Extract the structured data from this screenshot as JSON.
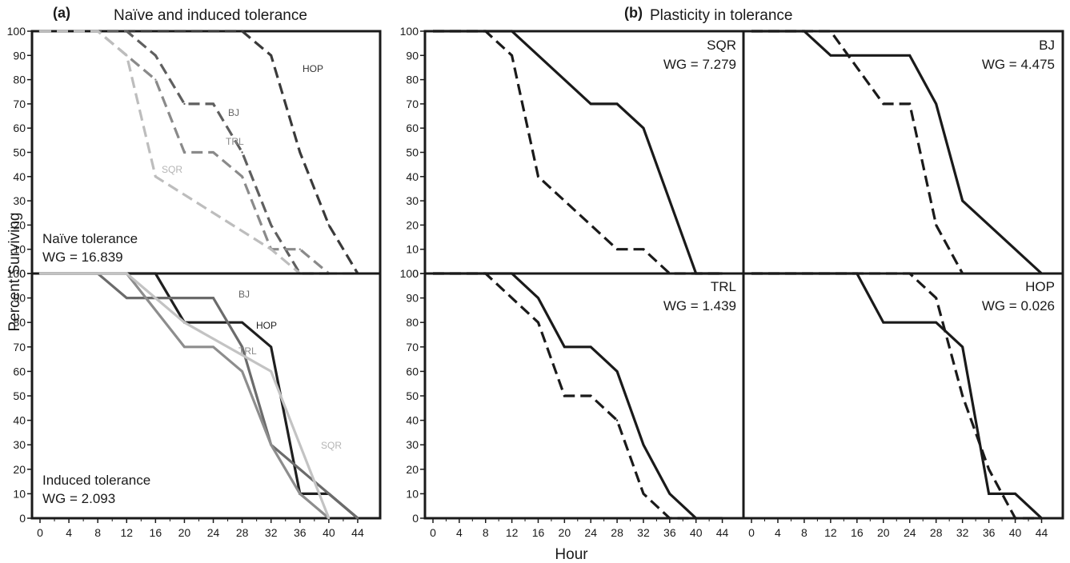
{
  "figure": {
    "panel_a_tag": "(a)",
    "panel_a_title": "Naïve and induced tolerance",
    "panel_b_tag": "(b)",
    "panel_b_title": "Plasticity in tolerance",
    "y_axis_label": "Percent Surviving",
    "x_axis_label": "Hour"
  },
  "chart_data": [
    {
      "id": "a-top",
      "type": "line",
      "xlabel": "",
      "ylabel": "Percent Surviving",
      "xlim": [
        0,
        46
      ],
      "ylim": [
        0,
        100
      ],
      "annotation_line1": "Naïve tolerance",
      "annotation_line2": "WG = 16.839",
      "series": [
        {
          "name": "HOP",
          "style": "dashed",
          "color": "#3a3a3a",
          "x": [
            0,
            28,
            32,
            36,
            40,
            44
          ],
          "y": [
            100,
            100,
            90,
            50,
            20,
            0
          ]
        },
        {
          "name": "BJ",
          "style": "dashed",
          "color": "#5f5f5f",
          "x": [
            0,
            12,
            16,
            20,
            24,
            28,
            32,
            36,
            40
          ],
          "y": [
            100,
            100,
            90,
            70,
            70,
            50,
            20,
            0,
            0
          ]
        },
        {
          "name": "TRL",
          "style": "dashed",
          "color": "#8a8a8a",
          "x": [
            0,
            8,
            12,
            16,
            20,
            24,
            28,
            32,
            36,
            40
          ],
          "y": [
            100,
            100,
            90,
            80,
            50,
            50,
            40,
            10,
            10,
            0
          ]
        },
        {
          "name": "SQR",
          "style": "dashed",
          "color": "#bdbdbd",
          "x": [
            0,
            8,
            12,
            16,
            32,
            36,
            40,
            44
          ],
          "y": [
            100,
            100,
            90,
            40,
            10,
            0,
            0,
            0
          ]
        }
      ]
    },
    {
      "id": "a-bottom",
      "type": "line",
      "xlabel": "Hour",
      "ylabel": "Percent Surviving",
      "xlim": [
        0,
        46
      ],
      "ylim": [
        0,
        100
      ],
      "annotation_line1": "Induced tolerance",
      "annotation_line2": "WG = 2.093",
      "series": [
        {
          "name": "HOP",
          "style": "solid",
          "color": "#1f1f1f",
          "x": [
            0,
            16,
            20,
            28,
            32,
            36,
            40,
            44
          ],
          "y": [
            100,
            100,
            80,
            80,
            70,
            10,
            10,
            0
          ]
        },
        {
          "name": "BJ",
          "style": "solid",
          "color": "#6b6b6b",
          "x": [
            0,
            8,
            12,
            24,
            28,
            32,
            40,
            44
          ],
          "y": [
            100,
            100,
            90,
            90,
            70,
            30,
            10,
            0
          ]
        },
        {
          "name": "TRL",
          "style": "solid",
          "color": "#8d8d8d",
          "x": [
            0,
            12,
            20,
            24,
            28,
            32,
            36,
            40
          ],
          "y": [
            100,
            100,
            70,
            70,
            60,
            30,
            10,
            0
          ]
        },
        {
          "name": "SQR",
          "style": "solid",
          "color": "#c3c3c3",
          "x": [
            0,
            12,
            16,
            20,
            32,
            36,
            40
          ],
          "y": [
            100,
            100,
            90,
            80,
            60,
            30,
            0
          ]
        }
      ]
    },
    {
      "id": "b-sqr",
      "type": "line",
      "xlim": [
        0,
        46
      ],
      "ylim": [
        0,
        100
      ],
      "annotation_line1": "SQR",
      "annotation_line2": "WG = 7.279",
      "series": [
        {
          "style": "solid",
          "color": "#1a1a1a",
          "x": [
            0,
            12,
            24,
            28,
            32,
            40,
            44
          ],
          "y": [
            100,
            100,
            70,
            70,
            60,
            0,
            0
          ]
        },
        {
          "style": "dashed",
          "color": "#1a1a1a",
          "x": [
            0,
            8,
            12,
            16,
            28,
            32,
            36,
            44
          ],
          "y": [
            100,
            100,
            90,
            40,
            10,
            10,
            0,
            0
          ]
        }
      ]
    },
    {
      "id": "b-bj",
      "type": "line",
      "xlim": [
        0,
        46
      ],
      "ylim": [
        0,
        100
      ],
      "annotation_line1": "BJ",
      "annotation_line2": "WG = 4.475",
      "series": [
        {
          "style": "solid",
          "color": "#1a1a1a",
          "x": [
            0,
            8,
            12,
            24,
            28,
            32,
            44
          ],
          "y": [
            100,
            100,
            90,
            90,
            70,
            30,
            0
          ]
        },
        {
          "style": "dashed",
          "color": "#1a1a1a",
          "x": [
            0,
            12,
            20,
            24,
            28,
            32
          ],
          "y": [
            100,
            100,
            70,
            70,
            20,
            0
          ]
        }
      ]
    },
    {
      "id": "b-trl",
      "type": "line",
      "xlim": [
        0,
        46
      ],
      "ylim": [
        0,
        100
      ],
      "annotation_line1": "TRL",
      "annotation_line2": "WG = 1.439",
      "series": [
        {
          "style": "solid",
          "color": "#1a1a1a",
          "x": [
            0,
            12,
            16,
            20,
            24,
            28,
            32,
            36,
            40,
            44
          ],
          "y": [
            100,
            100,
            90,
            70,
            70,
            60,
            30,
            10,
            0,
            0
          ]
        },
        {
          "style": "dashed",
          "color": "#1a1a1a",
          "x": [
            0,
            8,
            16,
            20,
            24,
            28,
            32,
            36,
            40
          ],
          "y": [
            100,
            100,
            80,
            50,
            50,
            40,
            10,
            0,
            0
          ]
        }
      ]
    },
    {
      "id": "b-hop",
      "type": "line",
      "xlim": [
        0,
        46
      ],
      "ylim": [
        0,
        100
      ],
      "annotation_line1": "HOP",
      "annotation_line2": "WG = 0.026",
      "series": [
        {
          "style": "solid",
          "color": "#1a1a1a",
          "x": [
            0,
            16,
            20,
            28,
            32,
            36,
            40,
            44
          ],
          "y": [
            100,
            100,
            80,
            80,
            70,
            10,
            10,
            0
          ]
        },
        {
          "style": "dashed",
          "color": "#1a1a1a",
          "x": [
            0,
            24,
            28,
            32,
            36,
            40,
            44
          ],
          "y": [
            100,
            100,
            90,
            50,
            20,
            0,
            0
          ]
        }
      ]
    }
  ],
  "x_ticks": [
    0,
    4,
    8,
    12,
    16,
    20,
    24,
    28,
    32,
    36,
    40,
    44
  ],
  "y_ticks": [
    0,
    10,
    20,
    30,
    40,
    50,
    60,
    70,
    80,
    90,
    100
  ]
}
